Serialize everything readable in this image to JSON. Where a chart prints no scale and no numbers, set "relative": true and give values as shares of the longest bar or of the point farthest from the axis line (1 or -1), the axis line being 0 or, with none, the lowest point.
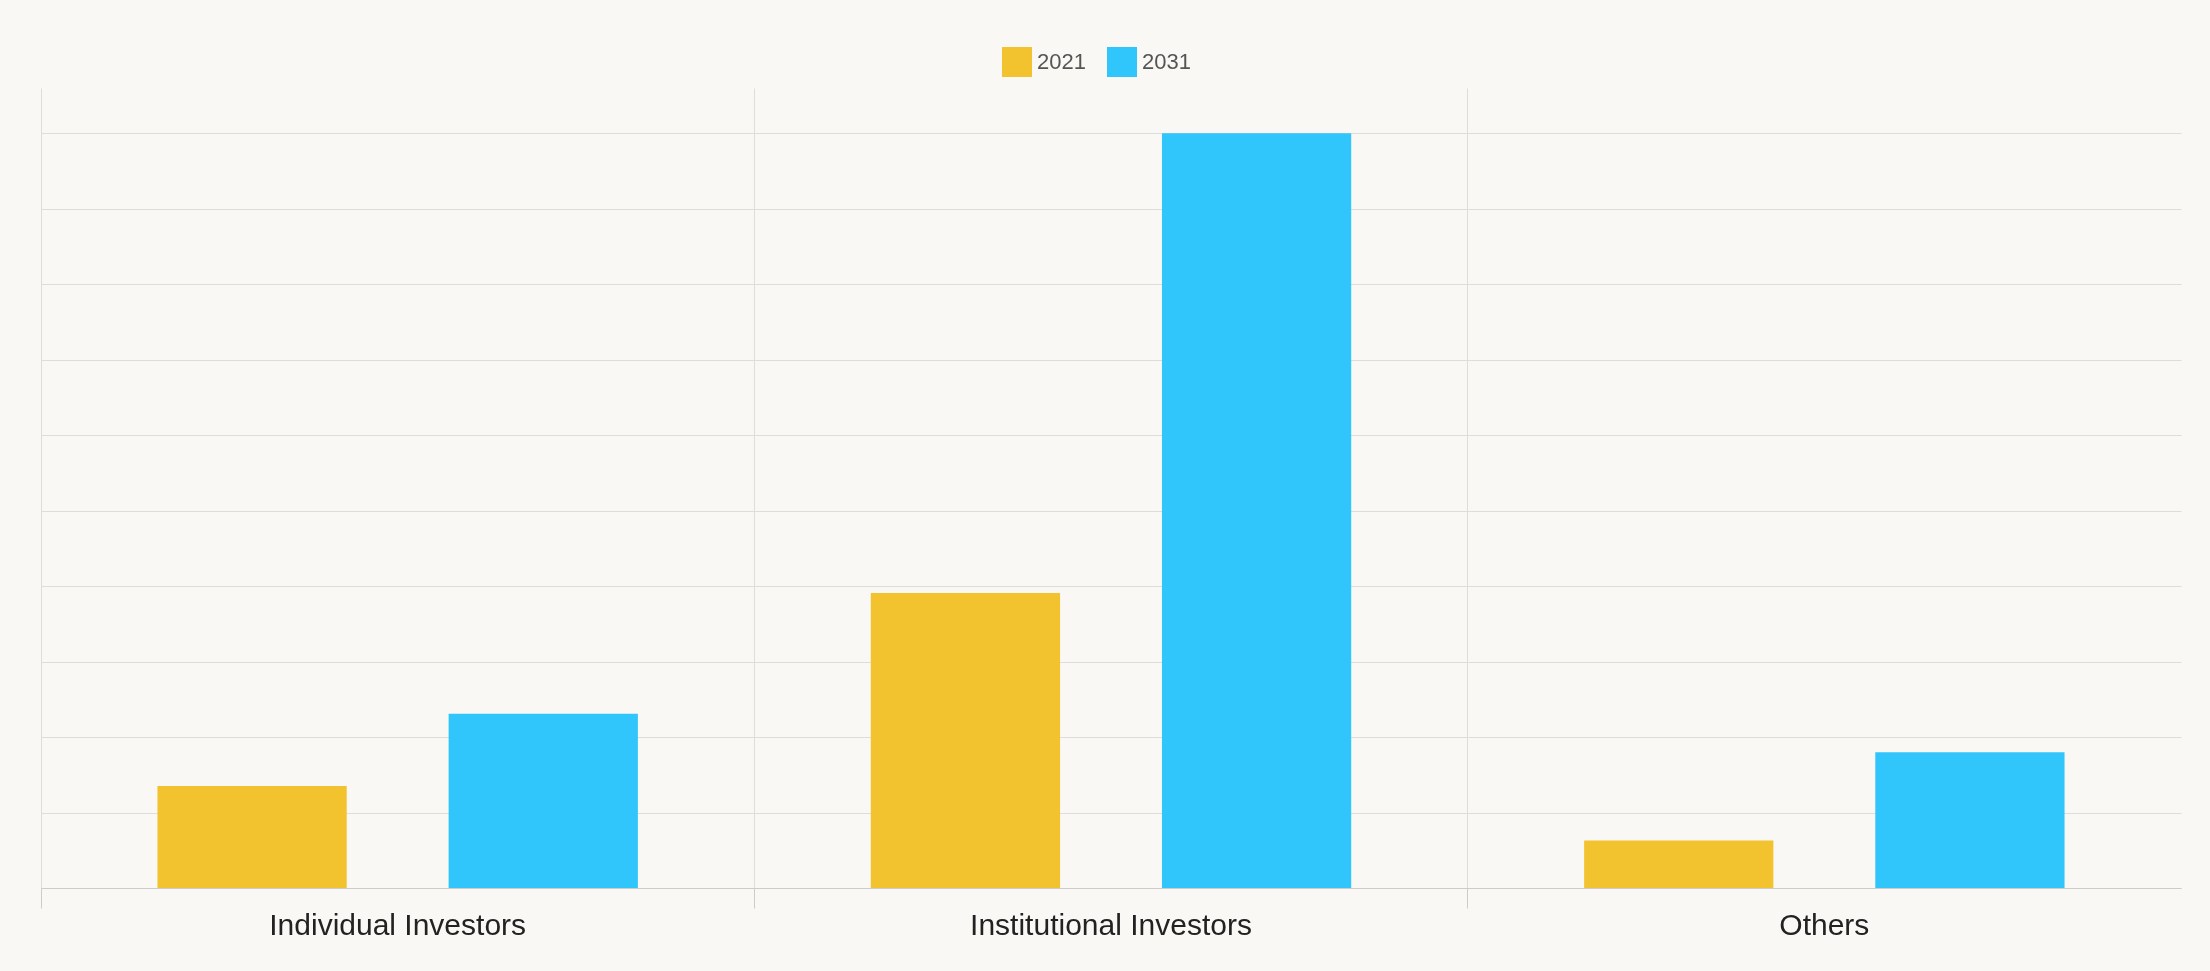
{
  "chart_data": {
    "type": "bar",
    "relative": true,
    "categories": [
      "Individual Investors",
      "Institutional Investors",
      "Others"
    ],
    "series": [
      {
        "name": "2021",
        "color": "#f2c32e",
        "values": [
          0.135,
          0.391,
          0.063
        ]
      },
      {
        "name": "2031",
        "color": "#30c5fb",
        "values": [
          0.231,
          1,
          0.18
        ]
      }
    ],
    "grid": true,
    "legend": "top"
  }
}
